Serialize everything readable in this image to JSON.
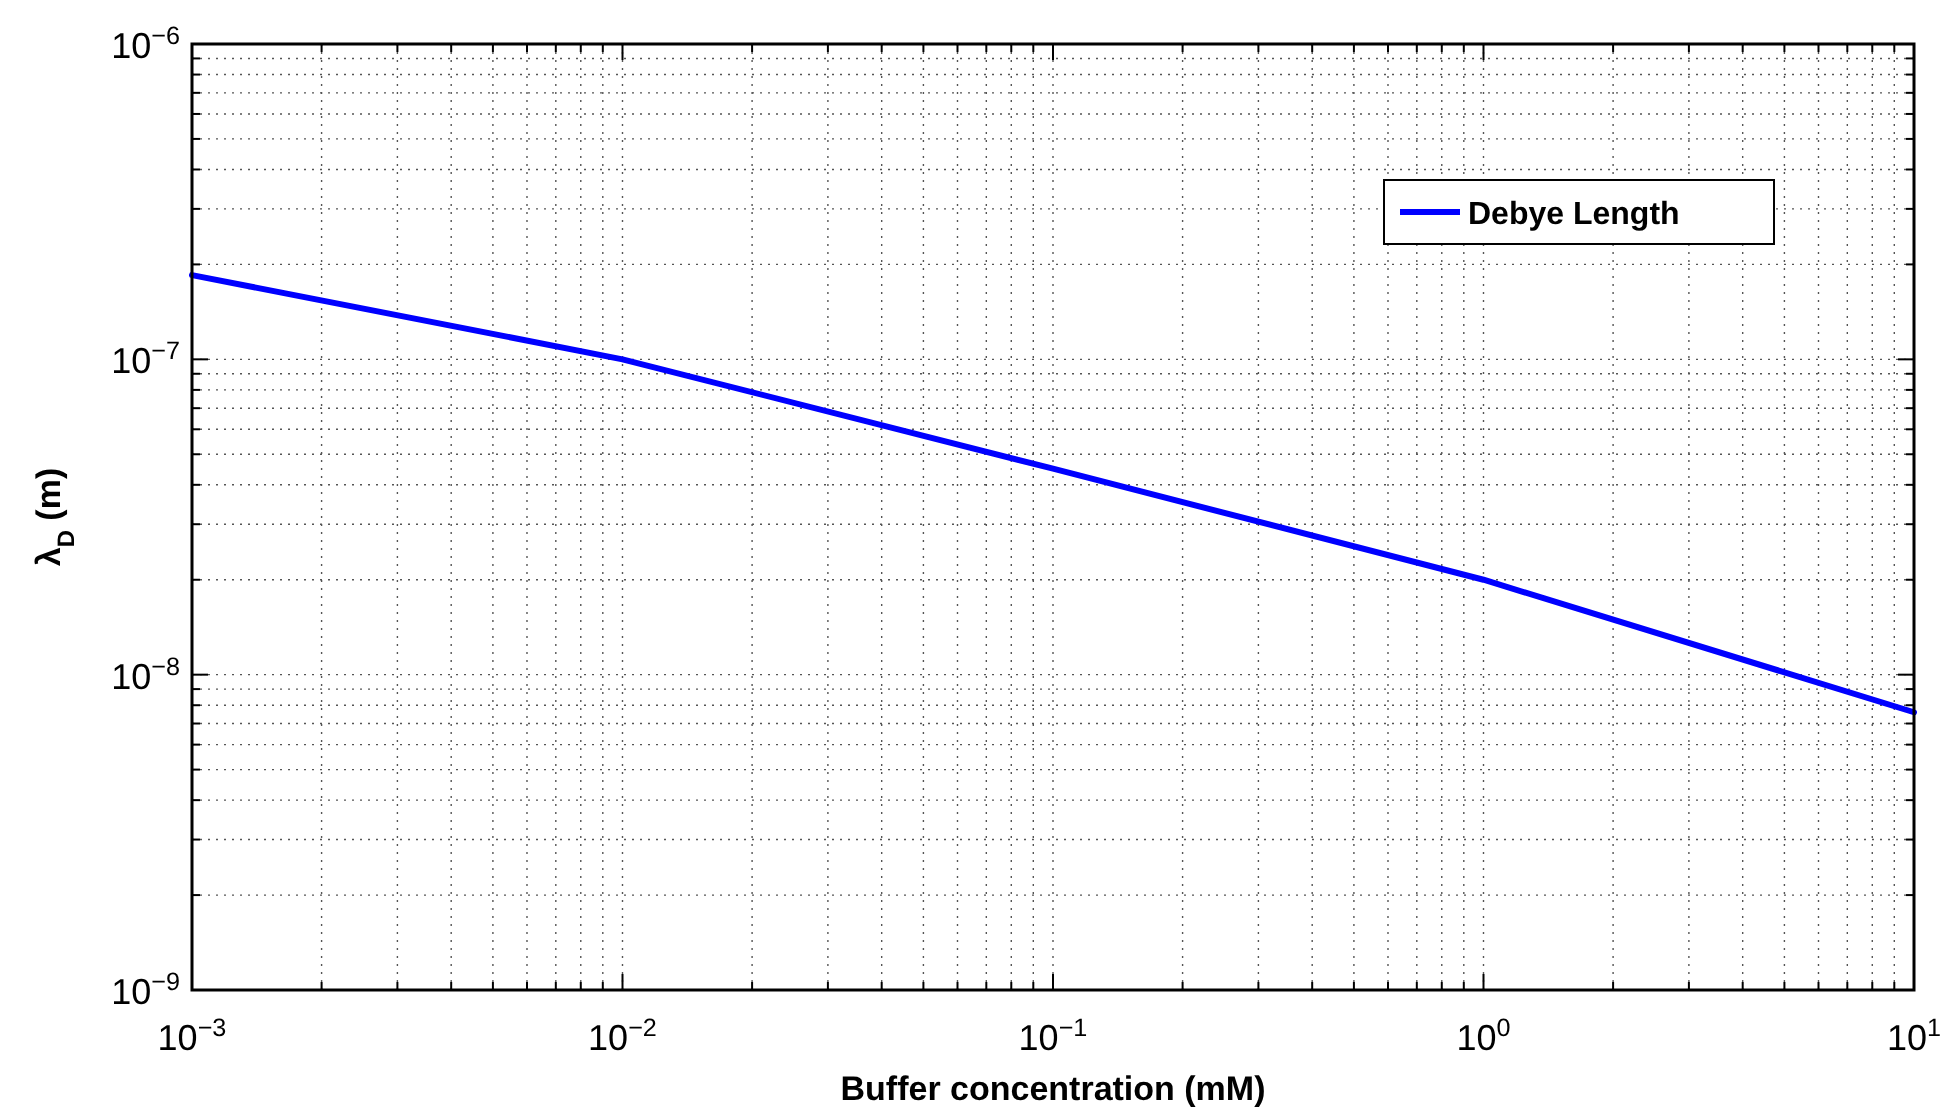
{
  "chart_data": {
    "type": "line",
    "xlabel": "Buffer concentration (mM)",
    "ylabel": "λ$_{D}$ (m)",
    "log": "xy",
    "grid": true,
    "legend": "top right",
    "line_style": "solid",
    "marker": "none",
    "x": [
      0.001,
      0.01,
      0.1,
      1,
      10
    ],
    "series": [
      {
        "name": "Debye Length",
        "color": "#0000ff",
        "values": [
          1.85e-07,
          1e-07,
          4.5e-08,
          2e-08,
          7.6e-09
        ]
      }
    ],
    "xlim": [
      0.001,
      10
    ],
    "ylim": [
      1e-09,
      1e-06
    ],
    "xticks": [
      {
        "value": 0.001,
        "label": "10$^{−3}$"
      },
      {
        "value": 0.01,
        "label": "10$^{−2}$"
      },
      {
        "value": 0.1,
        "label": "10$^{−1}$"
      },
      {
        "value": 1,
        "label": "10$^{0}$"
      },
      {
        "value": 10,
        "label": "10$^{1}$"
      }
    ],
    "yticks": [
      {
        "value": 1e-09,
        "label": "10$^{−9}$"
      },
      {
        "value": 1e-08,
        "label": "10$^{−8}$"
      },
      {
        "value": 1e-07,
        "label": "10$^{−7}$"
      },
      {
        "value": 1e-06,
        "label": "10$^{−6}$"
      }
    ]
  }
}
